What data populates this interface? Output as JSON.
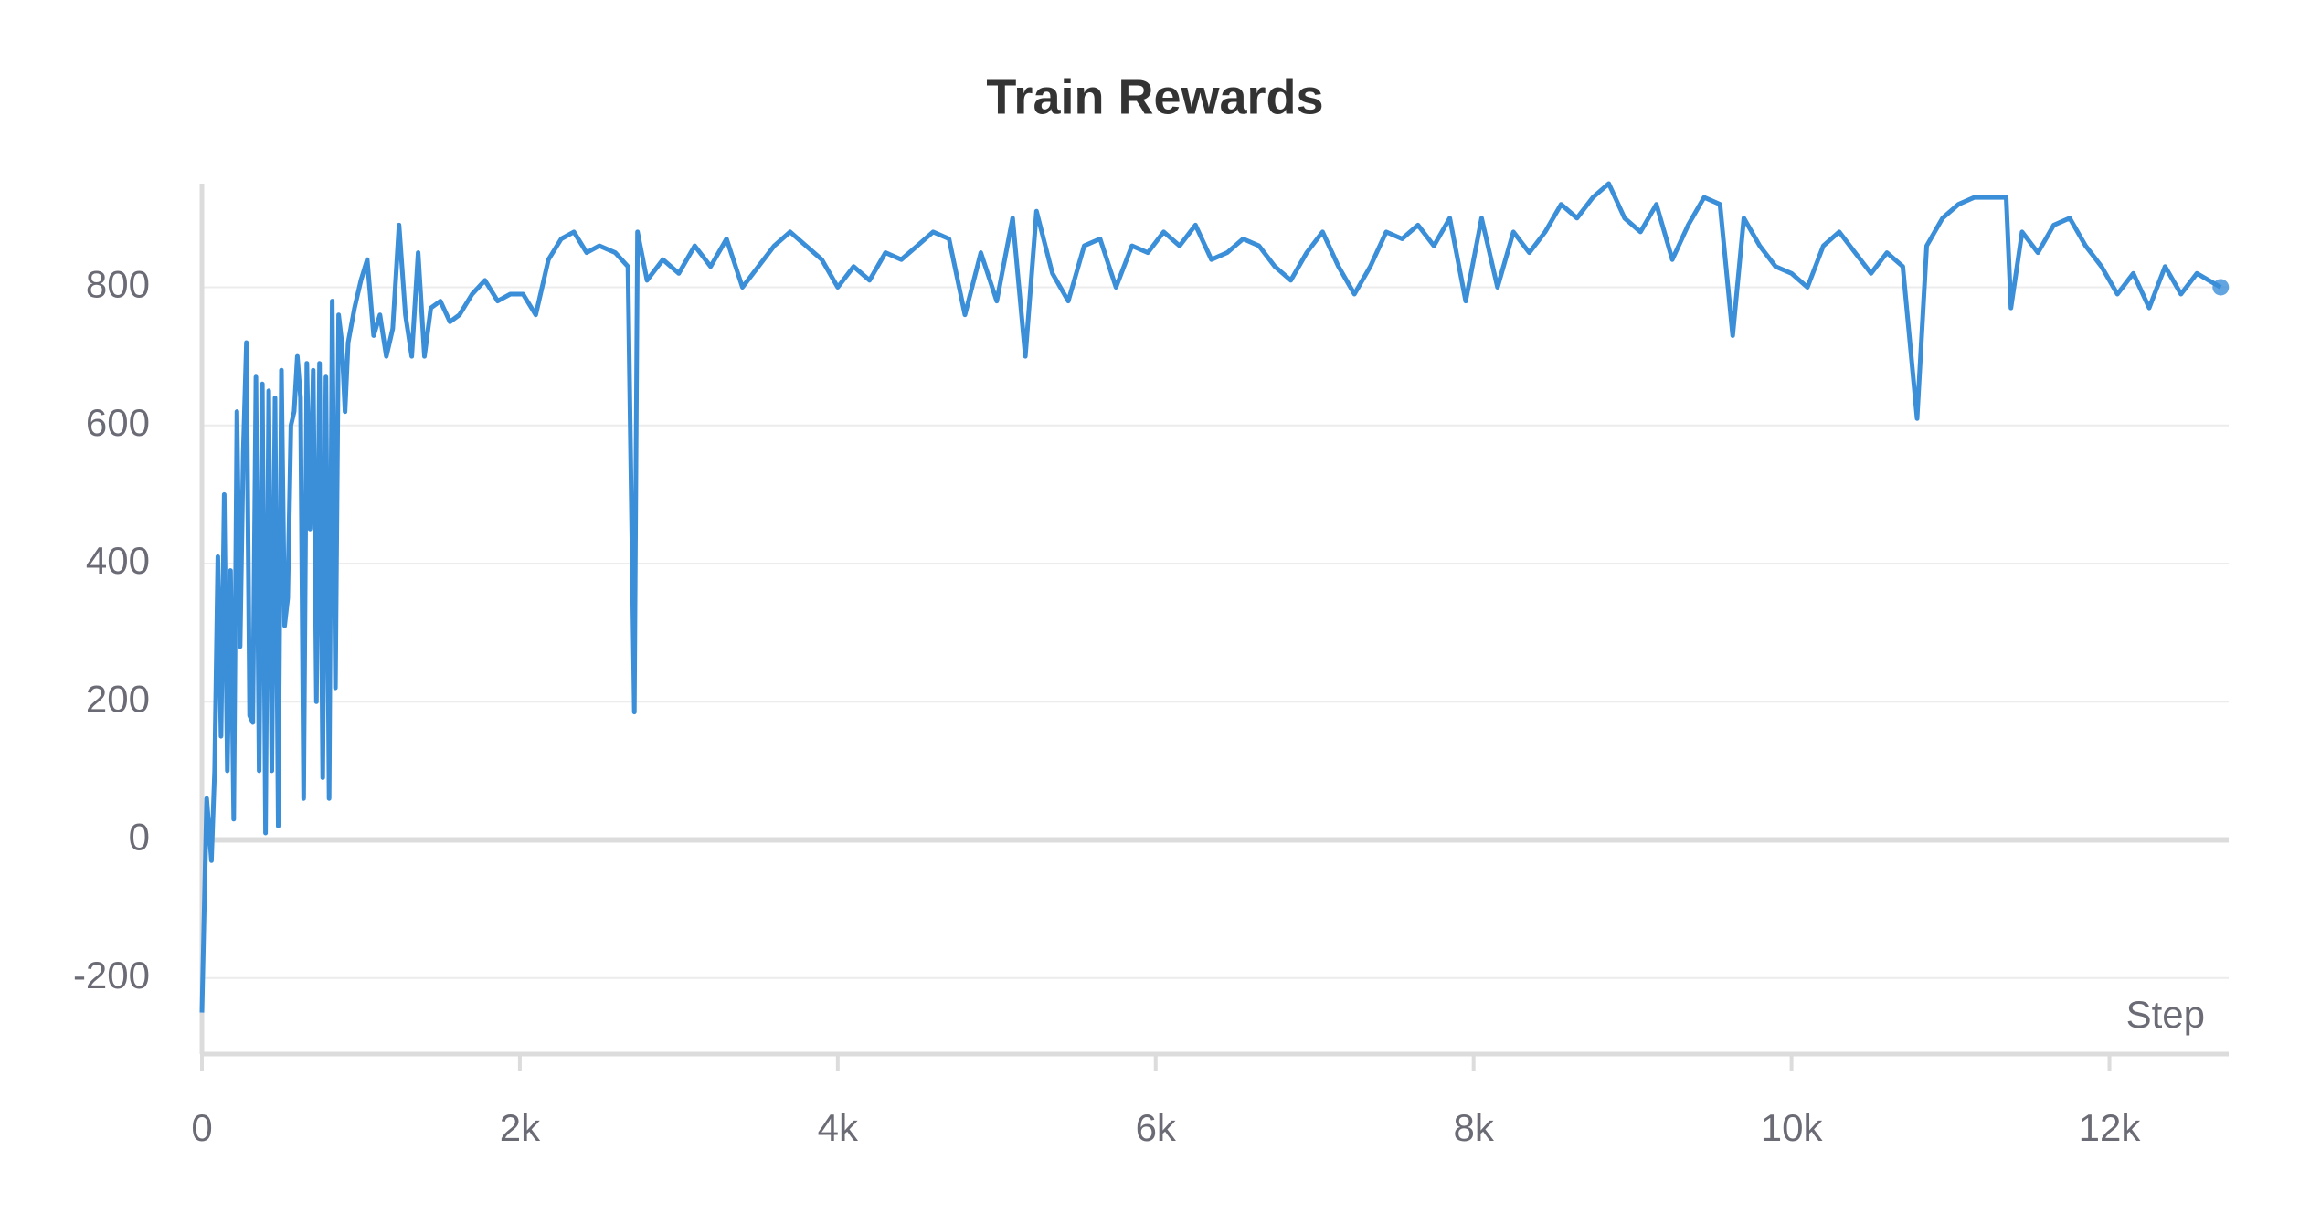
{
  "chart_data": {
    "type": "line",
    "title": "Train Rewards",
    "x_label": "Step",
    "color": "#3b8ed8",
    "grid": true,
    "xlim": [
      0,
      12750
    ],
    "ylim": [
      -310,
      950
    ],
    "xticks": [
      0,
      {
        "value": 2000,
        "label": "2k"
      },
      {
        "value": 4000,
        "label": "4k"
      },
      {
        "value": 6000,
        "label": "6k"
      },
      {
        "value": 8000,
        "label": "8k"
      },
      {
        "value": 10000,
        "label": "10k"
      },
      {
        "value": 12000,
        "label": "12k"
      }
    ],
    "yticks": [
      -200,
      0,
      200,
      400,
      600,
      800
    ],
    "x": [
      0,
      30,
      60,
      80,
      100,
      120,
      140,
      160,
      180,
      200,
      220,
      240,
      260,
      280,
      300,
      320,
      340,
      360,
      380,
      400,
      420,
      440,
      460,
      480,
      500,
      520,
      540,
      560,
      580,
      600,
      620,
      640,
      660,
      680,
      700,
      720,
      740,
      760,
      780,
      800,
      820,
      840,
      860,
      880,
      900,
      920,
      960,
      1000,
      1040,
      1080,
      1120,
      1160,
      1200,
      1240,
      1280,
      1320,
      1360,
      1400,
      1440,
      1500,
      1560,
      1620,
      1700,
      1780,
      1860,
      1940,
      2020,
      2100,
      2180,
      2260,
      2340,
      2420,
      2500,
      2600,
      2680,
      2720,
      2740,
      2800,
      2900,
      3000,
      3100,
      3200,
      3300,
      3400,
      3500,
      3600,
      3700,
      3800,
      3900,
      4000,
      4100,
      4200,
      4300,
      4400,
      4500,
      4600,
      4700,
      4800,
      4900,
      5000,
      5100,
      5180,
      5250,
      5350,
      5450,
      5550,
      5650,
      5750,
      5850,
      5950,
      6050,
      6150,
      6250,
      6350,
      6450,
      6550,
      6650,
      6750,
      6850,
      6950,
      7050,
      7150,
      7250,
      7350,
      7450,
      7550,
      7650,
      7750,
      7850,
      7950,
      8050,
      8150,
      8250,
      8350,
      8450,
      8550,
      8650,
      8750,
      8850,
      8950,
      9050,
      9150,
      9250,
      9350,
      9450,
      9550,
      9630,
      9700,
      9800,
      9900,
      10000,
      10100,
      10200,
      10300,
      10400,
      10500,
      10600,
      10700,
      10790,
      10850,
      10950,
      11050,
      11150,
      11250,
      11350,
      11380,
      11450,
      11550,
      11650,
      11750,
      11850,
      11950,
      12050,
      12150,
      12250,
      12350,
      12450,
      12550,
      12700
    ],
    "values": [
      -250,
      60,
      -30,
      100,
      410,
      150,
      500,
      100,
      390,
      30,
      620,
      280,
      560,
      720,
      180,
      170,
      670,
      100,
      660,
      10,
      650,
      100,
      640,
      20,
      680,
      310,
      350,
      600,
      620,
      700,
      640,
      60,
      690,
      450,
      680,
      200,
      690,
      90,
      670,
      60,
      780,
      220,
      760,
      720,
      620,
      720,
      770,
      810,
      840,
      730,
      760,
      700,
      740,
      890,
      760,
      700,
      850,
      700,
      770,
      780,
      750,
      760,
      790,
      810,
      780,
      790,
      790,
      760,
      840,
      870,
      880,
      850,
      860,
      850,
      830,
      185,
      880,
      810,
      840,
      820,
      860,
      830,
      870,
      800,
      830,
      860,
      880,
      860,
      840,
      800,
      830,
      810,
      850,
      840,
      860,
      880,
      870,
      760,
      850,
      780,
      900,
      700,
      910,
      820,
      780,
      860,
      870,
      800,
      860,
      850,
      880,
      860,
      890,
      840,
      850,
      870,
      860,
      830,
      810,
      850,
      880,
      830,
      790,
      830,
      880,
      870,
      890,
      860,
      900,
      780,
      900,
      800,
      880,
      850,
      880,
      920,
      900,
      930,
      950,
      900,
      880,
      920,
      840,
      890,
      930,
      920,
      730,
      900,
      860,
      830,
      820,
      800,
      860,
      880,
      850,
      820,
      850,
      830,
      610,
      860,
      900,
      920,
      930,
      930,
      930,
      770,
      880,
      850,
      890,
      900,
      860,
      830,
      790,
      820,
      770,
      830,
      790,
      820,
      800
    ]
  }
}
